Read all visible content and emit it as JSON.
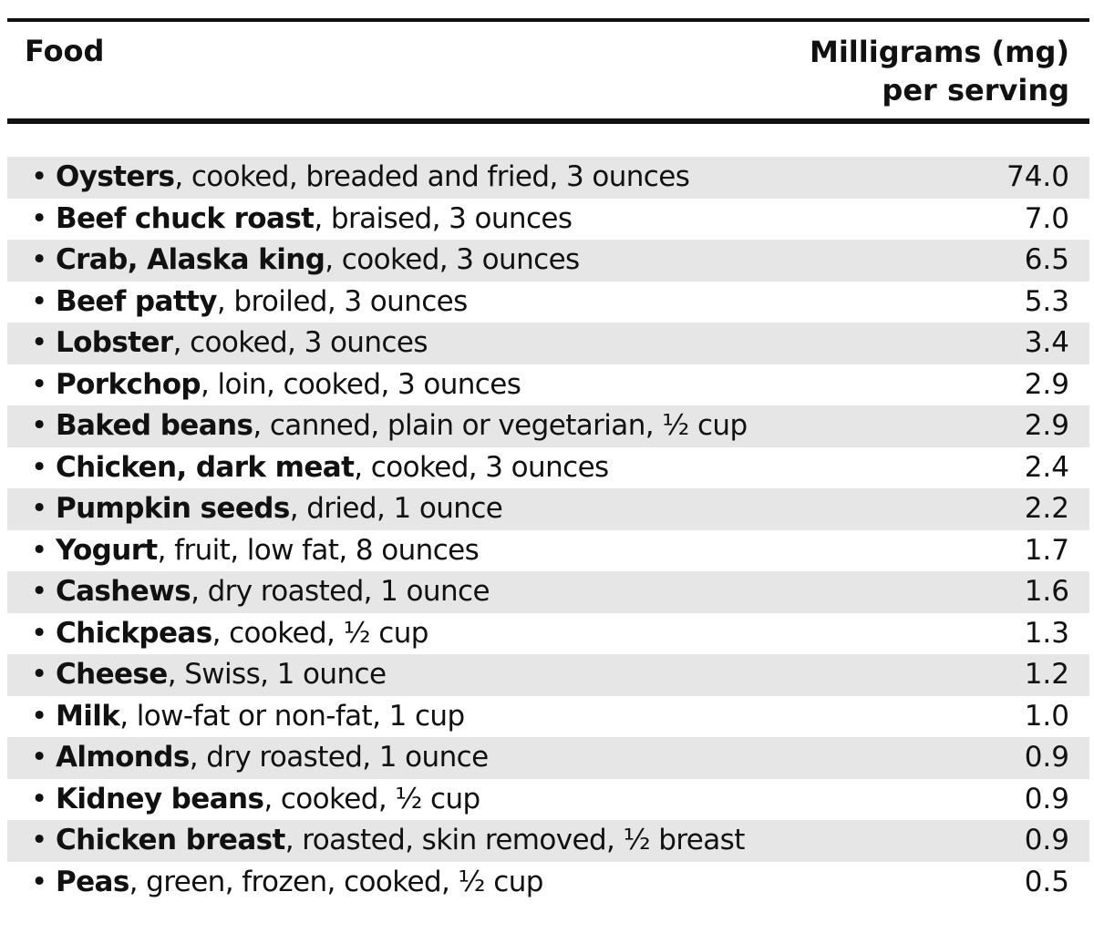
{
  "header": {
    "food": "Food",
    "mg_line1": "Milligrams (mg)",
    "mg_line2": "per serving"
  },
  "rows": [
    {
      "bullet": "•",
      "name": "Oysters",
      "detail": ", cooked, breaded and fried, 3 ounces",
      "mg": "74.0"
    },
    {
      "bullet": "•",
      "name": "Beef chuck roast",
      "detail": ", braised, 3 ounces",
      "mg": "7.0"
    },
    {
      "bullet": "•",
      "name": "Crab, Alaska king",
      "detail": ", cooked, 3 ounces",
      "mg": "6.5"
    },
    {
      "bullet": "•",
      "name": "Beef patty",
      "detail": ", broiled, 3 ounces",
      "mg": "5.3"
    },
    {
      "bullet": "•",
      "name": "Lobster",
      "detail": ", cooked, 3 ounces",
      "mg": "3.4"
    },
    {
      "bullet": "•",
      "name": "Porkchop",
      "detail": ", loin, cooked, 3 ounces",
      "mg": "2.9"
    },
    {
      "bullet": "•",
      "name": "Baked beans",
      "detail": ", canned, plain or vegetarian, ½ cup",
      "mg": "2.9"
    },
    {
      "bullet": "•",
      "name": "Chicken, dark meat",
      "detail": ", cooked, 3 ounces",
      "mg": "2.4"
    },
    {
      "bullet": "•",
      "name": "Pumpkin seeds",
      "detail": ", dried, 1 ounce",
      "mg": "2.2"
    },
    {
      "bullet": "•",
      "name": "Yogurt",
      "detail": ", fruit, low fat, 8 ounces",
      "mg": "1.7"
    },
    {
      "bullet": "•",
      "name": "Cashews",
      "detail": ", dry roasted, 1 ounce",
      "mg": "1.6"
    },
    {
      "bullet": "•",
      "name": "Chickpeas",
      "detail": ", cooked, ½ cup",
      "mg": "1.3"
    },
    {
      "bullet": "•",
      "name": "Cheese",
      "detail": ", Swiss, 1 ounce",
      "mg": "1.2"
    },
    {
      "bullet": "•",
      "name": "Milk",
      "detail": ", low-fat or non-fat, 1 cup",
      "mg": "1.0"
    },
    {
      "bullet": "•",
      "name": "Almonds",
      "detail": ", dry roasted, 1 ounce",
      "mg": "0.9"
    },
    {
      "bullet": "•",
      "name": "Kidney beans",
      "detail": ", cooked, ½ cup",
      "mg": "0.9"
    },
    {
      "bullet": "•",
      "name": "Chicken breast",
      "detail": ", roasted, skin removed, ½ breast",
      "mg": "0.9"
    },
    {
      "bullet": "•",
      "name": "Peas",
      "detail": ", green, frozen, cooked, ½ cup",
      "mg": "0.5"
    }
  ],
  "colors": {
    "text": "#111111",
    "row_shade": "#e6e6e6",
    "background": "#ffffff"
  }
}
